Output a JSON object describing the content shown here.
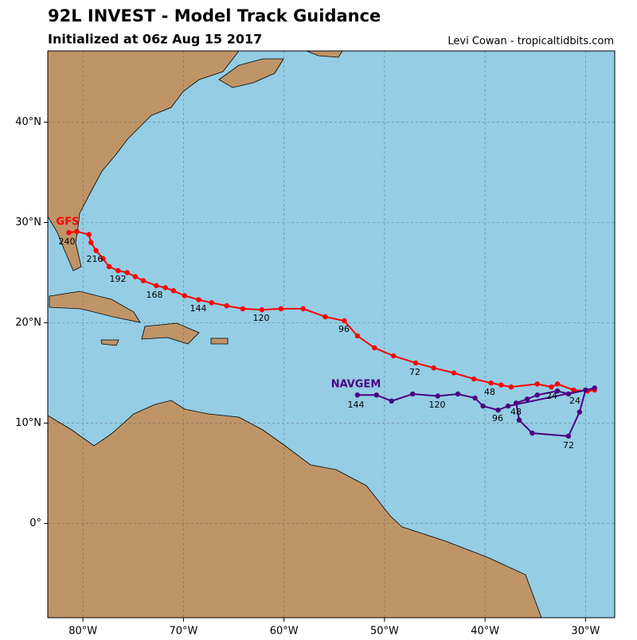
{
  "chart_data": {
    "type": "line",
    "title": "92L INVEST - Model Track Guidance",
    "subtitle": "Initialized at 06z Aug 15 2017",
    "credit": "Levi Cowan - tropicaltidbits.com",
    "xlim": [
      -83.5,
      -27.1
    ],
    "ylim": [
      -9.4,
      47.1
    ],
    "xticks": [
      {
        "value": -80,
        "label": "80°W"
      },
      {
        "value": -70,
        "label": "70°W"
      },
      {
        "value": -60,
        "label": "60°W"
      },
      {
        "value": -50,
        "label": "50°W"
      },
      {
        "value": -40,
        "label": "40°W"
      },
      {
        "value": -30,
        "label": "30°W"
      }
    ],
    "yticks": [
      {
        "value": 0,
        "label": "0°"
      },
      {
        "value": 10,
        "label": "10°N"
      },
      {
        "value": 20,
        "label": "20°N"
      },
      {
        "value": 30,
        "label": "30°N"
      },
      {
        "value": 40,
        "label": "40°N"
      }
    ],
    "grid": true,
    "series": [
      {
        "name": "GFS",
        "color": "#ff0000",
        "x": [
          -29.1,
          -29.8,
          -31.2,
          -32.8,
          -33.4,
          -34.8,
          -37.4,
          -38.4,
          -39.4,
          -41.1,
          -43.1,
          -45.1,
          -46.9,
          -49.1,
          -51.0,
          -52.7,
          -54.0,
          -55.9,
          -58.1,
          -60.3,
          -62.2,
          -64.1,
          -65.7,
          -67.2,
          -68.5,
          -69.9,
          -71.0,
          -71.8,
          -72.7,
          -74.0,
          -74.8,
          -75.6,
          -76.5,
          -77.4,
          -78.0,
          -78.7,
          -79.2,
          -79.4,
          -80.6,
          -81.4
        ],
        "values": [
          13.3,
          13.2,
          13.3,
          13.9,
          13.6,
          13.9,
          13.6,
          13.8,
          14.0,
          14.4,
          15.0,
          15.5,
          16.0,
          16.7,
          17.5,
          18.7,
          20.2,
          20.6,
          21.4,
          21.4,
          21.3,
          21.4,
          21.7,
          22.0,
          22.3,
          22.7,
          23.2,
          23.5,
          23.7,
          24.2,
          24.6,
          25.0,
          25.2,
          25.6,
          26.4,
          27.2,
          28.0,
          28.8,
          29.1,
          29.0
        ],
        "labels": [
          24,
          48,
          72,
          96,
          120,
          144,
          168,
          192,
          216,
          240
        ]
      },
      {
        "name": "NAVGEM",
        "color": "#4b0082",
        "x": [
          -29.1,
          -31.7,
          -32.8,
          -34.8,
          -35.8,
          -36.9,
          -36.6,
          -35.3,
          -31.7,
          -30.6,
          -30.0,
          -37.7,
          -38.7,
          -40.2,
          -41.0,
          -42.7,
          -44.7,
          -47.2,
          -49.3,
          -50.8,
          -52.7
        ],
        "values": [
          13.5,
          12.9,
          13.2,
          12.8,
          12.4,
          12.0,
          10.3,
          9.0,
          8.7,
          11.1,
          13.3,
          11.7,
          11.3,
          11.7,
          12.5,
          12.9,
          12.7,
          12.9,
          12.2,
          12.8,
          12.8
        ],
        "labels": [
          24,
          48,
          72,
          96,
          120,
          144
        ]
      }
    ]
  }
}
